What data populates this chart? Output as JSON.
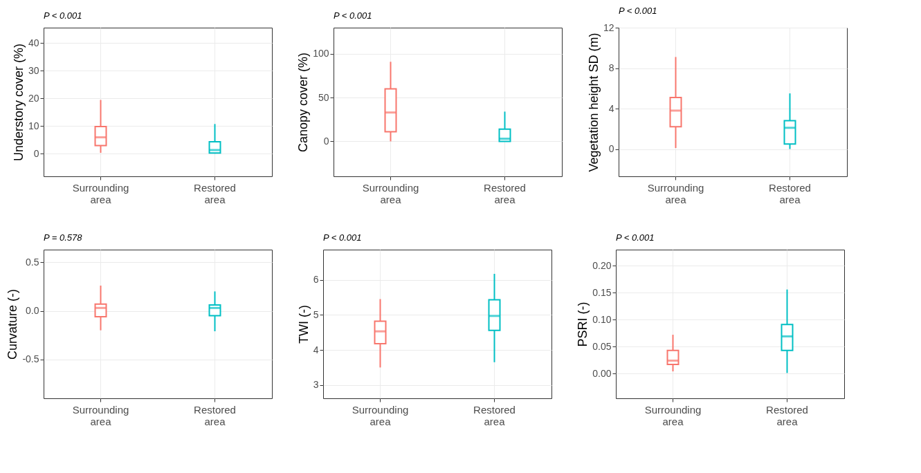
{
  "chart_data": [
    {
      "type": "box",
      "title": "P < 0.001",
      "ylabel": "Understory cover (%)",
      "categories": [
        "Surrounding area",
        "Restored area"
      ],
      "colors": [
        "#f8766d",
        "#00bfc4"
      ],
      "ylim": [
        -8.2,
        45.5
      ],
      "yticks": [
        0,
        10,
        20,
        30,
        40
      ],
      "grid": true,
      "boxes": [
        {
          "low": 0.3,
          "q1": 2.9,
          "median": 5.9,
          "q3": 9.8,
          "high": 19.4
        },
        {
          "low": 0,
          "q1": 0.2,
          "median": 1.3,
          "q3": 4.3,
          "high": 10.7
        }
      ]
    },
    {
      "type": "box",
      "title": "P < 0.001",
      "ylabel": "Canopy cover (%)",
      "categories": [
        "Surrounding area",
        "Restored area"
      ],
      "colors": [
        "#f8766d",
        "#00bfc4"
      ],
      "ylim": [
        -40,
        130
      ],
      "yticks": [
        0,
        50,
        100
      ],
      "grid": true,
      "boxes": [
        {
          "low": 0,
          "q1": 11,
          "median": 33,
          "q3": 60,
          "high": 91
        },
        {
          "low": 0,
          "q1": 0,
          "median": 3,
          "q3": 14,
          "high": 34
        }
      ]
    },
    {
      "type": "box",
      "title": "P < 0.001",
      "ylabel": "Vegetation height SD (m)",
      "categories": [
        "Surrounding area",
        "Restored area"
      ],
      "colors": [
        "#f8766d",
        "#00bfc4"
      ],
      "ylim": [
        -2.7,
        12
      ],
      "yticks": [
        0,
        4,
        8,
        12
      ],
      "grid": true,
      "boxes": [
        {
          "low": 0.1,
          "q1": 2.2,
          "median": 3.8,
          "q3": 5.1,
          "high": 9.1
        },
        {
          "low": 0,
          "q1": 0.5,
          "median": 2.1,
          "q3": 2.8,
          "high": 5.5
        }
      ]
    },
    {
      "type": "box",
      "title": "P = 0.578",
      "ylabel": "Curvature (-)",
      "categories": [
        "Surrounding area",
        "Restored area"
      ],
      "colors": [
        "#f8766d",
        "#00bfc4"
      ],
      "ylim": [
        -0.9,
        0.63
      ],
      "yticks": [
        {
          "value": -0.5,
          "label": "-0.5"
        },
        {
          "value": 0,
          "label": "0.0"
        },
        {
          "value": 0.5,
          "label": "0.5"
        }
      ],
      "grid": true,
      "boxes": [
        {
          "low": -0.2,
          "q1": -0.06,
          "median": 0.03,
          "q3": 0.07,
          "high": 0.26
        },
        {
          "low": -0.21,
          "q1": -0.05,
          "median": 0.03,
          "q3": 0.06,
          "high": 0.2
        }
      ]
    },
    {
      "type": "box",
      "title": "P < 0.001",
      "ylabel": "TWI (-)",
      "categories": [
        "Surrounding area",
        "Restored area"
      ],
      "colors": [
        "#f8766d",
        "#00bfc4"
      ],
      "ylim": [
        2.62,
        6.86
      ],
      "yticks": [
        3,
        4,
        5,
        6
      ],
      "grid": true,
      "boxes": [
        {
          "low": 3.5,
          "q1": 4.18,
          "median": 4.53,
          "q3": 4.82,
          "high": 5.45
        },
        {
          "low": 3.65,
          "q1": 4.56,
          "median": 4.97,
          "q3": 5.43,
          "high": 6.17
        }
      ]
    },
    {
      "type": "box",
      "title": "P < 0.001",
      "ylabel": "PSRI (-)",
      "categories": [
        "Surrounding area",
        "Restored area"
      ],
      "colors": [
        "#f8766d",
        "#00bfc4"
      ],
      "ylim": [
        -0.046,
        0.23
      ],
      "yticks": [
        {
          "value": 0,
          "label": "0.00"
        },
        {
          "value": 0.05,
          "label": "0.05"
        },
        {
          "value": 0.1,
          "label": "0.10"
        },
        {
          "value": 0.15,
          "label": "0.15"
        },
        {
          "value": 0.2,
          "label": "0.20"
        }
      ],
      "grid": true,
      "boxes": [
        {
          "low": 0.004,
          "q1": 0.017,
          "median": 0.024,
          "q3": 0.043,
          "high": 0.072
        },
        {
          "low": 0.001,
          "q1": 0.043,
          "median": 0.069,
          "q3": 0.091,
          "high": 0.156
        }
      ]
    }
  ]
}
